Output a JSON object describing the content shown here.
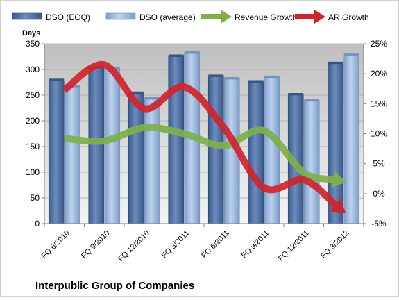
{
  "chart_data": {
    "type": "bar",
    "title": "Interpublic Group of Companies",
    "y_left_label": "Days",
    "ylim_left": [
      0,
      350
    ],
    "y_left_ticks": [
      "0",
      "50",
      "100",
      "150",
      "200",
      "250",
      "300",
      "350"
    ],
    "ylim_right": [
      -5,
      25
    ],
    "y_right_ticks": [
      "-5%",
      "0%",
      "5%",
      "10%",
      "15%",
      "20%",
      "25%"
    ],
    "categories": [
      "FQ 6/2010",
      "FQ 9/2010",
      "FQ 12/2010",
      "FQ 3/2011",
      "FQ 6/2011",
      "FQ 9/2011",
      "FQ 12/2011",
      "FQ 3/2012"
    ],
    "series": [
      {
        "name": "DSO (EOQ)",
        "kind": "bar",
        "axis": "left",
        "color": "#4F6FA0",
        "values": [
          278,
          303,
          253,
          325,
          286,
          275,
          250,
          311
        ]
      },
      {
        "name": "DSO (average)",
        "kind": "bar",
        "axis": "left",
        "color": "#9DB8DB",
        "values": [
          266,
          300,
          242,
          331,
          281,
          284,
          238,
          327
        ]
      },
      {
        "name": "Revenue Growth",
        "kind": "arrow-line",
        "axis": "right",
        "color": "#7FAF4C",
        "values": [
          9.2,
          8.8,
          11.0,
          10.0,
          8.0,
          10.5,
          3.5,
          2.0
        ]
      },
      {
        "name": "AR Growth",
        "kind": "arrow-line",
        "axis": "right",
        "color": "#D0242B",
        "values": [
          17.3,
          21.5,
          14.2,
          17.8,
          11.0,
          1.0,
          2.3,
          -3.0
        ]
      }
    ],
    "grid": true,
    "legend_position": "top"
  }
}
